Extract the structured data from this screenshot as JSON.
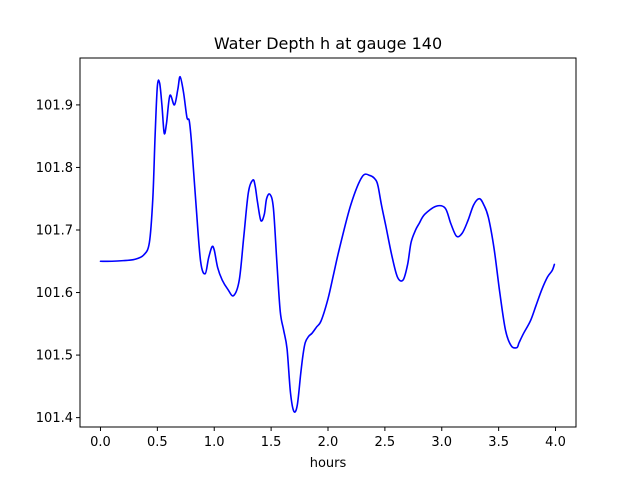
{
  "chart_data": {
    "type": "line",
    "title": "Water Depth h at gauge 140",
    "xlabel": "hours",
    "ylabel": "",
    "xlim": [
      -0.18,
      4.18
    ],
    "ylim": [
      101.385,
      101.975
    ],
    "xticks": [
      0.0,
      0.5,
      1.0,
      1.5,
      2.0,
      2.5,
      3.0,
      3.5,
      4.0
    ],
    "xtick_labels": [
      "0.0",
      "0.5",
      "1.0",
      "1.5",
      "2.0",
      "2.5",
      "3.0",
      "3.5",
      "4.0"
    ],
    "yticks": [
      101.4,
      101.5,
      101.6,
      101.7,
      101.8,
      101.9
    ],
    "ytick_labels": [
      "101.4",
      "101.5",
      "101.6",
      "101.7",
      "101.8",
      "101.9"
    ],
    "grid": false,
    "legend": "none",
    "series": [
      {
        "color": "#0000ff",
        "x": [
          0.0,
          0.1,
          0.2,
          0.3,
          0.38,
          0.43,
          0.46,
          0.48,
          0.5,
          0.52,
          0.54,
          0.56,
          0.58,
          0.61,
          0.65,
          0.68,
          0.7,
          0.73,
          0.76,
          0.78,
          0.8,
          0.84,
          0.88,
          0.92,
          0.95,
          0.98,
          1.0,
          1.03,
          1.07,
          1.12,
          1.17,
          1.22,
          1.26,
          1.3,
          1.34,
          1.36,
          1.38,
          1.41,
          1.44,
          1.46,
          1.49,
          1.52,
          1.55,
          1.58,
          1.61,
          1.64,
          1.67,
          1.7,
          1.73,
          1.76,
          1.78,
          1.8,
          1.83,
          1.86,
          1.9,
          1.94,
          2.0,
          2.05,
          2.1,
          2.2,
          2.3,
          2.37,
          2.42,
          2.44,
          2.47,
          2.51,
          2.56,
          2.61,
          2.66,
          2.7,
          2.73,
          2.77,
          2.8,
          2.85,
          2.95,
          3.03,
          3.08,
          3.13,
          3.18,
          3.23,
          3.28,
          3.33,
          3.37,
          3.41,
          3.46,
          3.51,
          3.56,
          3.61,
          3.66,
          3.68,
          3.72,
          3.78,
          3.83,
          3.88,
          3.93,
          3.97,
          3.99
        ],
        "y": [
          101.65,
          101.65,
          101.651,
          101.653,
          101.66,
          101.68,
          101.75,
          101.85,
          101.93,
          101.935,
          101.9,
          101.855,
          101.87,
          101.915,
          101.9,
          101.925,
          101.945,
          101.92,
          101.88,
          101.875,
          101.84,
          101.74,
          101.65,
          101.63,
          101.655,
          101.673,
          101.668,
          101.64,
          101.62,
          101.605,
          101.595,
          101.62,
          101.69,
          101.76,
          101.78,
          101.77,
          101.745,
          101.715,
          101.725,
          101.75,
          101.757,
          101.735,
          101.65,
          101.57,
          101.54,
          101.51,
          101.44,
          101.41,
          101.42,
          101.47,
          101.5,
          101.52,
          101.53,
          101.535,
          101.545,
          101.555,
          101.59,
          101.63,
          101.67,
          101.74,
          101.785,
          101.787,
          101.78,
          101.77,
          101.74,
          101.705,
          101.66,
          101.625,
          101.62,
          101.645,
          101.68,
          101.7,
          101.71,
          101.725,
          101.738,
          101.735,
          101.71,
          101.69,
          101.695,
          101.715,
          101.74,
          101.75,
          101.74,
          101.72,
          101.67,
          101.6,
          101.54,
          101.515,
          101.512,
          101.52,
          101.535,
          101.555,
          101.58,
          101.605,
          101.625,
          101.635,
          101.645
        ]
      }
    ]
  }
}
